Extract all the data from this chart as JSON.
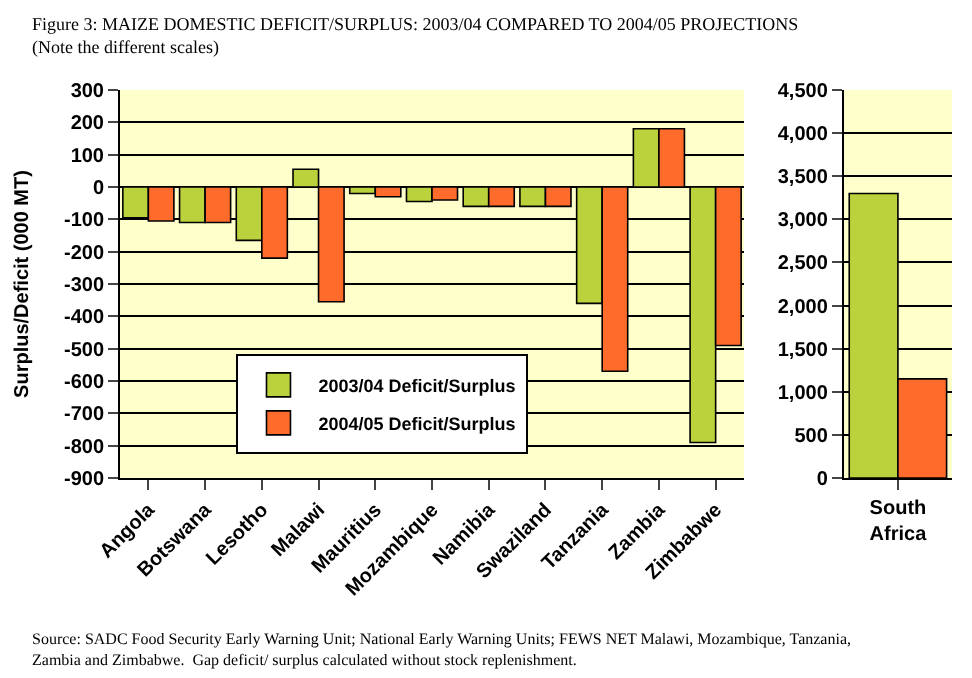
{
  "chart_data": [
    {
      "type": "bar",
      "title": "Figure 3: MAIZE DOMESTIC DEFICIT/SURPLUS: 2003/04 COMPARED TO 2004/05 PROJECTIONS",
      "subtitle": "(Note the different scales)",
      "ylabel": "Surplus/Deficit (000 MT)",
      "categories": [
        "Angola",
        "Botswana",
        "Lesotho",
        "Malawi",
        "Mauritius",
        "Mozambique",
        "Namibia",
        "Swaziland",
        "Tanzania",
        "Zambia",
        "Zimbabwe"
      ],
      "series": [
        {
          "name": "2003/04 Deficit/Surplus",
          "color": "#bcd23c",
          "values": [
            -95,
            -110,
            -165,
            55,
            -20,
            -45,
            -60,
            -60,
            -360,
            180,
            -790
          ]
        },
        {
          "name": "2004/05 Deficit/Surplus",
          "color": "#ff6b2b",
          "values": [
            -105,
            -110,
            -220,
            -355,
            -30,
            -40,
            -60,
            -60,
            -570,
            180,
            -490
          ]
        }
      ],
      "ylim": [
        -900,
        300
      ],
      "yticks": [
        -900,
        -800,
        -700,
        -600,
        -500,
        -400,
        -300,
        -200,
        -100,
        0,
        100,
        200,
        300
      ],
      "grid": "y",
      "legend": "bottom",
      "annotations": [
        "Source: SADC Food Security Early Warning Unit; National Early Warning Units; FEWS NET Malawi, Mozambique, Tanzania, Zambia and Zimbabwe.  Gap deficit/ surplus calculated without stock replenishment."
      ]
    },
    {
      "type": "bar",
      "categories": [
        "South Africa"
      ],
      "series": [
        {
          "color": "#bcd23c",
          "values": [
            3300
          ]
        },
        {
          "color": "#ff6b2b",
          "values": [
            1150
          ]
        }
      ],
      "ylim": [
        0,
        4500
      ],
      "yticks": [
        0,
        {
          "value": 500,
          "label": "500"
        },
        {
          "value": 1000,
          "label": "1,000"
        },
        {
          "value": 1500,
          "label": "1,500"
        },
        {
          "value": 2000,
          "label": "2,000"
        },
        {
          "value": 2500,
          "label": "2,500"
        },
        {
          "value": 3000,
          "label": "3,000"
        },
        {
          "value": 3500,
          "label": "3,500"
        },
        {
          "value": 4000,
          "label": "4,000"
        },
        {
          "value": 4500,
          "label": "4,500"
        }
      ],
      "grid": "y"
    }
  ]
}
